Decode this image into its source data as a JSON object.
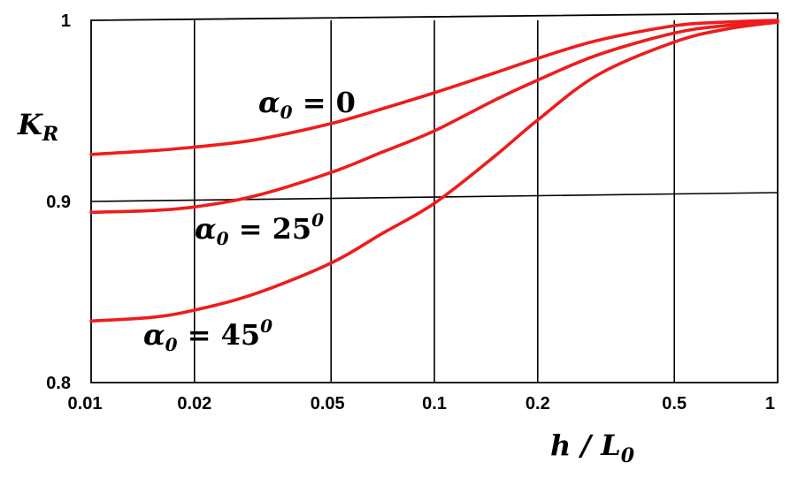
{
  "chart_data": {
    "type": "line",
    "xscale": "log",
    "xlim": [
      0.01,
      1
    ],
    "ylim": [
      0.8,
      1
    ],
    "grid": true,
    "xticks": [
      "0.01",
      "0.02",
      "0.05",
      "0.1",
      "0.2",
      "0.5",
      "1"
    ],
    "xtick_values": [
      0.01,
      0.02,
      0.05,
      0.1,
      0.2,
      0.5,
      1
    ],
    "yticks": [
      "0.8",
      "0.9",
      "1"
    ],
    "ytick_values": [
      0.8,
      0.9,
      1
    ],
    "ylabel": {
      "main": "K",
      "sub": "R"
    },
    "xlabel": {
      "main": "h / L",
      "sub": "0"
    },
    "series": [
      {
        "label": {
          "main": "α",
          "sub": "0",
          "rest": " = 0",
          "sup": ""
        },
        "color": "#ee1c1c",
        "x": [
          0.01,
          0.015,
          0.02,
          0.03,
          0.05,
          0.07,
          0.1,
          0.15,
          0.2,
          0.3,
          0.5,
          0.7,
          1
        ],
        "y": [
          0.926,
          0.928,
          0.93,
          0.934,
          0.943,
          0.951,
          0.96,
          0.971,
          0.979,
          0.989,
          0.997,
          0.999,
          1.0
        ]
      },
      {
        "label": {
          "main": "α",
          "sub": "0",
          "rest": " = 25",
          "sup": "0"
        },
        "color": "#ee1c1c",
        "x": [
          0.01,
          0.015,
          0.02,
          0.03,
          0.05,
          0.07,
          0.1,
          0.15,
          0.2,
          0.3,
          0.5,
          0.7,
          1
        ],
        "y": [
          0.894,
          0.895,
          0.897,
          0.903,
          0.916,
          0.927,
          0.939,
          0.956,
          0.967,
          0.981,
          0.993,
          0.997,
          0.999
        ]
      },
      {
        "label": {
          "main": "α",
          "sub": "0",
          "rest": " = 45",
          "sup": "0"
        },
        "color": "#ee1c1c",
        "x": [
          0.01,
          0.015,
          0.02,
          0.03,
          0.05,
          0.07,
          0.1,
          0.15,
          0.2,
          0.3,
          0.5,
          0.7,
          1
        ],
        "y": [
          0.834,
          0.836,
          0.84,
          0.849,
          0.866,
          0.882,
          0.899,
          0.925,
          0.945,
          0.97,
          0.988,
          0.995,
          0.999
        ]
      }
    ]
  }
}
